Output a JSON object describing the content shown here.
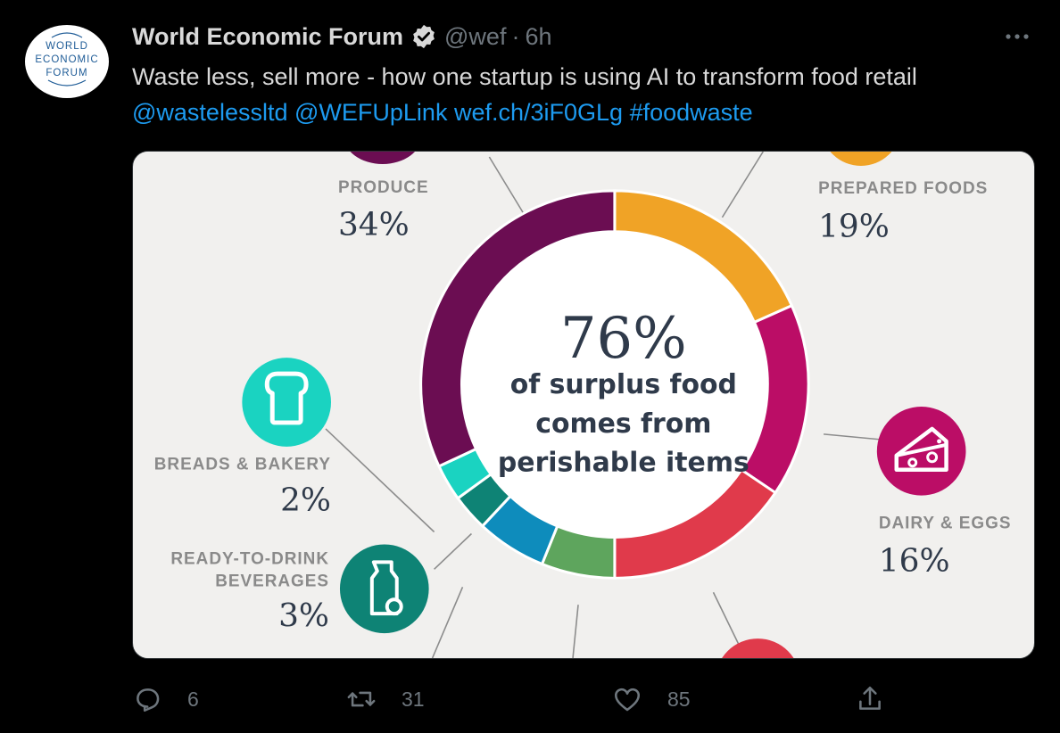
{
  "author": {
    "name": "World Economic Forum",
    "handle": "@wef",
    "separator": "·",
    "time": "6h",
    "avatar_text": [
      "WORLD",
      "ECONOMIC",
      "FORUM"
    ]
  },
  "tweet": {
    "line1": "Waste less, sell more - how one startup is using AI to transform food retail",
    "links": [
      "@wastelessltd",
      "@WEFUpLink",
      "wef.ch/3iF0GLg",
      "#foodwaste"
    ]
  },
  "infographic": {
    "center_value": "76%",
    "center_text": [
      "of surplus food",
      "comes from",
      "perishable items"
    ],
    "segments": [
      {
        "label": [
          "PRODUCE"
        ],
        "value": "34%",
        "percent": 34,
        "color": "#6b0d52"
      },
      {
        "label": [
          "PREPARED FOODS"
        ],
        "value": "19%",
        "percent": 19,
        "color": "#f0a326"
      },
      {
        "label": [
          "DAIRY & EGGS"
        ],
        "value": "16%",
        "percent": 16,
        "color": "#bb0d66"
      },
      {
        "label": [
          "BREADS & BAKERY"
        ],
        "value": "2%",
        "percent": 2,
        "color": "#1ad3c1"
      },
      {
        "label": [
          "READY-TO-DRINK",
          "BEVERAGES"
        ],
        "value": "3%",
        "percent": 3,
        "color": "#0e8375"
      }
    ],
    "colors": {
      "background": "#f1f0ee",
      "label_gray": "#8a8a8a",
      "value_dark": "#2f3a4a",
      "red": "#e03a4b",
      "blue": "#0e8cbc",
      "green": "#5ea55d"
    }
  },
  "actions": {
    "replies": "6",
    "retweets": "31",
    "likes": "85"
  },
  "colors": {
    "link": "#1d9bf0",
    "muted": "#6e767d",
    "text": "#d9d9d9",
    "background": "#000000"
  },
  "icons": [
    "verified-badge-icon",
    "more-icon",
    "reply-icon",
    "retweet-icon",
    "like-icon",
    "share-icon",
    "bread-icon",
    "cheese-icon",
    "bottle-icon"
  ]
}
